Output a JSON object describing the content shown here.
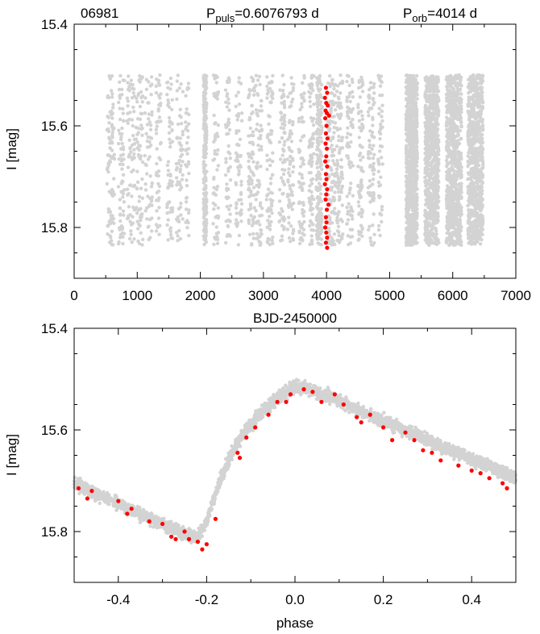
{
  "header": {
    "star_id": "06981",
    "ppuls_prefix": "P",
    "ppuls_sub": "puls",
    "ppuls_value": "=0.6076793 d",
    "porb_prefix": "P",
    "porb_sub": "orb",
    "porb_value": "=4014 d"
  },
  "colors": {
    "background_points": "#d3d3d3",
    "highlight_points": "#ff0000",
    "frame": "#000000"
  },
  "chart_data": [
    {
      "type": "scatter",
      "title": "",
      "xlabel": "BJD-2450000",
      "ylabel": "I [mag]",
      "xlim": [
        0,
        7000
      ],
      "ylim": [
        15.4,
        15.9
      ],
      "y_inverted": true,
      "x_ticks": [
        "0",
        "1000",
        "2000",
        "3000",
        "4000",
        "5000",
        "6000",
        "7000"
      ],
      "y_ticks": [
        "15.4",
        "15.6",
        "15.8"
      ],
      "x_tick_values": [
        0,
        1000,
        2000,
        3000,
        4000,
        5000,
        6000,
        7000
      ],
      "y_tick_values": [
        15.4,
        15.6,
        15.8
      ],
      "grid": false,
      "series": [
        {
          "color": "#d3d3d3",
          "bands": [
            {
              "x": [
                520,
                640
              ],
              "n": 90
            },
            {
              "x": [
                700,
                800
              ],
              "n": 70
            },
            {
              "x": [
                840,
                960
              ],
              "n": 70
            },
            {
              "x": [
                980,
                1090
              ],
              "n": 70
            },
            {
              "x": [
                1120,
                1240
              ],
              "n": 60
            },
            {
              "x": [
                1300,
                1380
              ],
              "n": 50
            },
            {
              "x": [
                1470,
                1560
              ],
              "n": 60
            },
            {
              "x": [
                1620,
                1730
              ],
              "n": 60
            },
            {
              "x": [
                1760,
                1820
              ],
              "n": 40
            },
            {
              "x": [
                2050,
                2100
              ],
              "n": 220
            },
            {
              "x": [
                2200,
                2290
              ],
              "n": 60
            },
            {
              "x": [
                2400,
                2480
              ],
              "n": 60
            },
            {
              "x": [
                2560,
                2660
              ],
              "n": 60
            },
            {
              "x": [
                2760,
                2860
              ],
              "n": 80
            },
            {
              "x": [
                2880,
                2980
              ],
              "n": 70
            },
            {
              "x": [
                3050,
                3150
              ],
              "n": 80
            },
            {
              "x": [
                3250,
                3340
              ],
              "n": 70
            },
            {
              "x": [
                3380,
                3480
              ],
              "n": 70
            },
            {
              "x": [
                3560,
                3650
              ],
              "n": 70
            },
            {
              "x": [
                3720,
                3800
              ],
              "n": 80
            },
            {
              "x": [
                3840,
                3930
              ],
              "n": 200
            },
            {
              "x": [
                4020,
                4140
              ],
              "n": 120
            },
            {
              "x": [
                4160,
                4260
              ],
              "n": 90
            },
            {
              "x": [
                4320,
                4420
              ],
              "n": 80
            },
            {
              "x": [
                4500,
                4580
              ],
              "n": 70
            },
            {
              "x": [
                4660,
                4760
              ],
              "n": 80
            },
            {
              "x": [
                4820,
                4890
              ],
              "n": 50
            },
            {
              "x": [
                5260,
                5440
              ],
              "n": 800
            },
            {
              "x": [
                5560,
                5780
              ],
              "n": 800
            },
            {
              "x": [
                5900,
                6140
              ],
              "n": 800
            },
            {
              "x": [
                6240,
                6480
              ],
              "n": 800
            }
          ],
          "y_range": [
            15.5,
            15.835
          ]
        },
        {
          "color": "#ff0000",
          "points": [
            [
              3990,
              15.525
            ],
            [
              4010,
              15.535
            ],
            [
              3975,
              15.545
            ],
            [
              3995,
              15.555
            ],
            [
              4020,
              15.56
            ],
            [
              3985,
              15.57
            ],
            [
              4005,
              15.575
            ],
            [
              4040,
              15.58
            ],
            [
              3980,
              15.585
            ],
            [
              4000,
              15.6
            ],
            [
              3990,
              15.615
            ],
            [
              4015,
              15.625
            ],
            [
              3985,
              15.635
            ],
            [
              4005,
              15.645
            ],
            [
              3995,
              15.66
            ],
            [
              3980,
              15.67
            ],
            [
              4010,
              15.68
            ],
            [
              3990,
              15.695
            ],
            [
              4000,
              15.705
            ],
            [
              3975,
              15.715
            ],
            [
              4010,
              15.725
            ],
            [
              3995,
              15.735
            ],
            [
              3985,
              15.745
            ],
            [
              4030,
              15.755
            ],
            [
              4005,
              15.765
            ],
            [
              3990,
              15.78
            ],
            [
              4000,
              15.79
            ],
            [
              3980,
              15.8
            ],
            [
              3995,
              15.81
            ],
            [
              4010,
              15.82
            ],
            [
              3990,
              15.83
            ],
            [
              4010,
              15.84
            ]
          ]
        }
      ]
    },
    {
      "type": "scatter",
      "title": "",
      "xlabel": "phase",
      "ylabel": "I [mag]",
      "xlim": [
        -0.5,
        0.5
      ],
      "ylim": [
        15.4,
        15.9
      ],
      "y_inverted": true,
      "x_ticks": [
        "-0.4",
        "-0.2",
        "0.0",
        "0.2",
        "0.4"
      ],
      "y_ticks": [
        "15.4",
        "15.6",
        "15.8"
      ],
      "x_tick_values": [
        -0.4,
        -0.2,
        0.0,
        0.2,
        0.4
      ],
      "y_tick_values": [
        15.4,
        15.6,
        15.8
      ],
      "grid": false,
      "light_curve": [
        [
          -0.5,
          15.705
        ],
        [
          -0.4,
          15.745
        ],
        [
          -0.3,
          15.785
        ],
        [
          -0.25,
          15.805
        ],
        [
          -0.22,
          15.81
        ],
        [
          -0.2,
          15.78
        ],
        [
          -0.17,
          15.7
        ],
        [
          -0.14,
          15.64
        ],
        [
          -0.11,
          15.6
        ],
        [
          -0.08,
          15.57
        ],
        [
          -0.05,
          15.545
        ],
        [
          -0.02,
          15.525
        ],
        [
          0.0,
          15.515
        ],
        [
          0.03,
          15.52
        ],
        [
          0.08,
          15.535
        ],
        [
          0.15,
          15.565
        ],
        [
          0.25,
          15.6
        ],
        [
          0.35,
          15.64
        ],
        [
          0.45,
          15.675
        ],
        [
          0.5,
          15.695
        ]
      ],
      "series": [
        {
          "color": "#d3d3d3",
          "spread": 0.018,
          "n": 3000
        },
        {
          "color": "#ff0000",
          "points": [
            [
              -0.49,
              15.715
            ],
            [
              -0.46,
              15.72
            ],
            [
              -0.47,
              15.735
            ],
            [
              -0.4,
              15.74
            ],
            [
              -0.37,
              15.755
            ],
            [
              -0.38,
              15.765
            ],
            [
              -0.33,
              15.78
            ],
            [
              -0.3,
              15.785
            ],
            [
              -0.28,
              15.81
            ],
            [
              -0.27,
              15.815
            ],
            [
              -0.25,
              15.8
            ],
            [
              -0.24,
              15.815
            ],
            [
              -0.22,
              15.82
            ],
            [
              -0.21,
              15.835
            ],
            [
              -0.2,
              15.825
            ],
            [
              -0.18,
              15.775
            ],
            [
              -0.13,
              15.645
            ],
            [
              -0.125,
              15.655
            ],
            [
              -0.11,
              15.615
            ],
            [
              -0.09,
              15.595
            ],
            [
              -0.06,
              15.57
            ],
            [
              -0.04,
              15.545
            ],
            [
              -0.02,
              15.545
            ],
            [
              -0.01,
              15.53
            ],
            [
              0.02,
              15.52
            ],
            [
              0.04,
              15.525
            ],
            [
              0.06,
              15.545
            ],
            [
              0.09,
              15.53
            ],
            [
              0.11,
              15.55
            ],
            [
              0.14,
              15.575
            ],
            [
              0.15,
              15.585
            ],
            [
              0.17,
              15.57
            ],
            [
              0.2,
              15.595
            ],
            [
              0.22,
              15.62
            ],
            [
              0.25,
              15.605
            ],
            [
              0.27,
              15.62
            ],
            [
              0.29,
              15.64
            ],
            [
              0.31,
              15.645
            ],
            [
              0.33,
              15.66
            ],
            [
              0.37,
              15.67
            ],
            [
              0.4,
              15.68
            ],
            [
              0.42,
              15.685
            ],
            [
              0.44,
              15.695
            ],
            [
              0.47,
              15.705
            ],
            [
              0.48,
              15.715
            ]
          ]
        }
      ]
    }
  ]
}
